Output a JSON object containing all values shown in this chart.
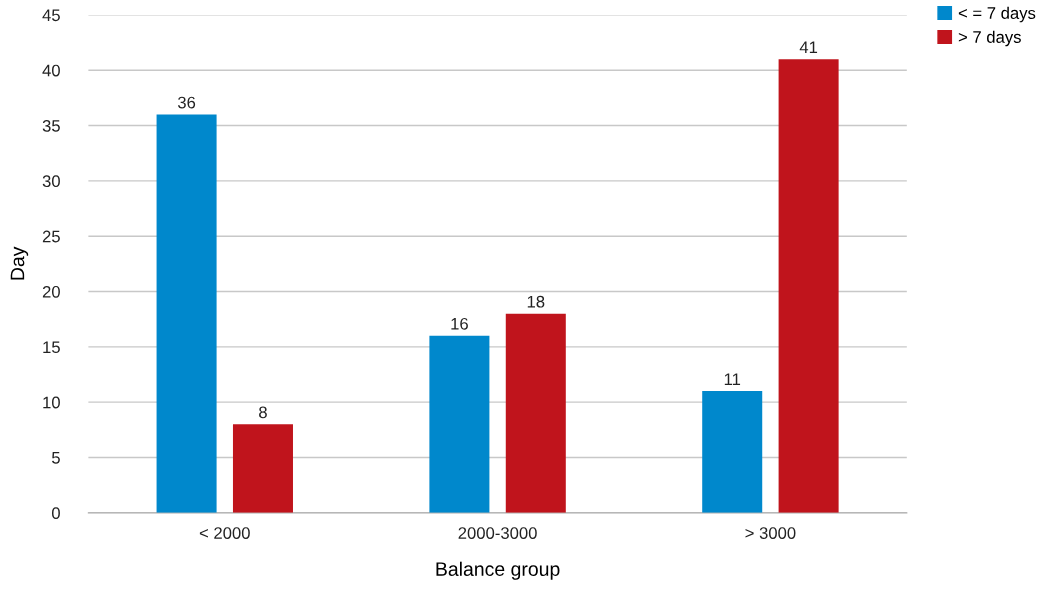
{
  "chart_data": {
    "type": "bar",
    "xlabel": "Balance group",
    "ylabel": "Day",
    "categories": [
      "< 2000",
      "2000-3000",
      "> 3000"
    ],
    "series": [
      {
        "name": "< = 7 days",
        "color": "#0088cc",
        "values": [
          36,
          16,
          11
        ]
      },
      {
        "name": "> 7 days",
        "color": "#c0141c",
        "values": [
          8,
          18,
          41
        ]
      }
    ],
    "ylim": [
      0,
      45
    ],
    "yticks": [
      0,
      5,
      10,
      15,
      20,
      25,
      30,
      35,
      40,
      45
    ],
    "grid": "y",
    "legend": "top right",
    "data_labels": true
  }
}
